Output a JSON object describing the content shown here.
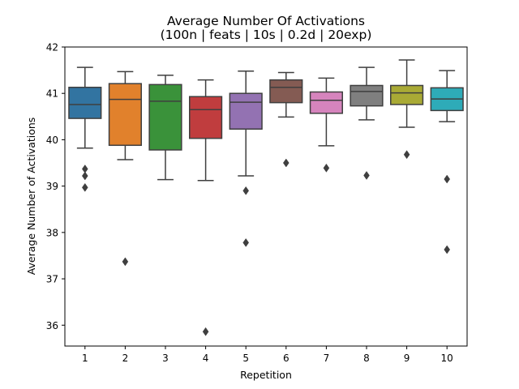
{
  "chart_data": {
    "type": "box",
    "title": "Average Number Of Activations",
    "subtitle": "(100n | feats | 10s | 0.2d | 20exp)",
    "xlabel": "Repetition",
    "ylabel": "Average Number of Activations",
    "ylim": [
      35.55,
      42.0
    ],
    "yticks": [
      36,
      37,
      38,
      39,
      40,
      41,
      42
    ],
    "categories": [
      "1",
      "2",
      "3",
      "4",
      "5",
      "6",
      "7",
      "8",
      "9",
      "10"
    ],
    "grid": false,
    "series": [
      {
        "label": "1",
        "color": "#3274a1",
        "q1": 40.46,
        "median": 40.76,
        "q3": 41.13,
        "whisker_low": 39.82,
        "whisker_high": 41.56,
        "outliers": [
          39.37,
          39.22,
          38.97
        ]
      },
      {
        "label": "2",
        "color": "#e1812c",
        "q1": 39.88,
        "median": 40.87,
        "q3": 41.21,
        "whisker_low": 39.57,
        "whisker_high": 41.47,
        "outliers": [
          37.37
        ]
      },
      {
        "label": "3",
        "color": "#3a923a",
        "q1": 39.78,
        "median": 40.83,
        "q3": 41.19,
        "whisker_low": 39.14,
        "whisker_high": 41.39,
        "outliers": []
      },
      {
        "label": "4",
        "color": "#c03d3e",
        "q1": 40.03,
        "median": 40.65,
        "q3": 40.93,
        "whisker_low": 39.12,
        "whisker_high": 41.29,
        "outliers": [
          35.86
        ]
      },
      {
        "label": "5",
        "color": "#9372b2",
        "q1": 40.23,
        "median": 40.81,
        "q3": 41.0,
        "whisker_low": 39.22,
        "whisker_high": 41.48,
        "outliers": [
          38.9,
          37.78
        ]
      },
      {
        "label": "6",
        "color": "#845b53",
        "q1": 40.8,
        "median": 41.13,
        "q3": 41.29,
        "whisker_low": 40.49,
        "whisker_high": 41.45,
        "outliers": [
          39.5
        ]
      },
      {
        "label": "7",
        "color": "#d684bd",
        "q1": 40.57,
        "median": 40.85,
        "q3": 41.03,
        "whisker_low": 39.87,
        "whisker_high": 41.33,
        "outliers": [
          39.39
        ]
      },
      {
        "label": "8",
        "color": "#7f7f7f",
        "q1": 40.73,
        "median": 41.04,
        "q3": 41.17,
        "whisker_low": 40.43,
        "whisker_high": 41.56,
        "outliers": [
          39.23
        ]
      },
      {
        "label": "9",
        "color": "#a9aa35",
        "q1": 40.76,
        "median": 41.01,
        "q3": 41.17,
        "whisker_low": 40.27,
        "whisker_high": 41.72,
        "outliers": [
          39.68
        ]
      },
      {
        "label": "10",
        "color": "#2eabb8",
        "q1": 40.63,
        "median": 40.88,
        "q3": 41.12,
        "whisker_low": 40.39,
        "whisker_high": 41.49,
        "outliers": [
          39.15,
          37.63
        ]
      }
    ]
  }
}
